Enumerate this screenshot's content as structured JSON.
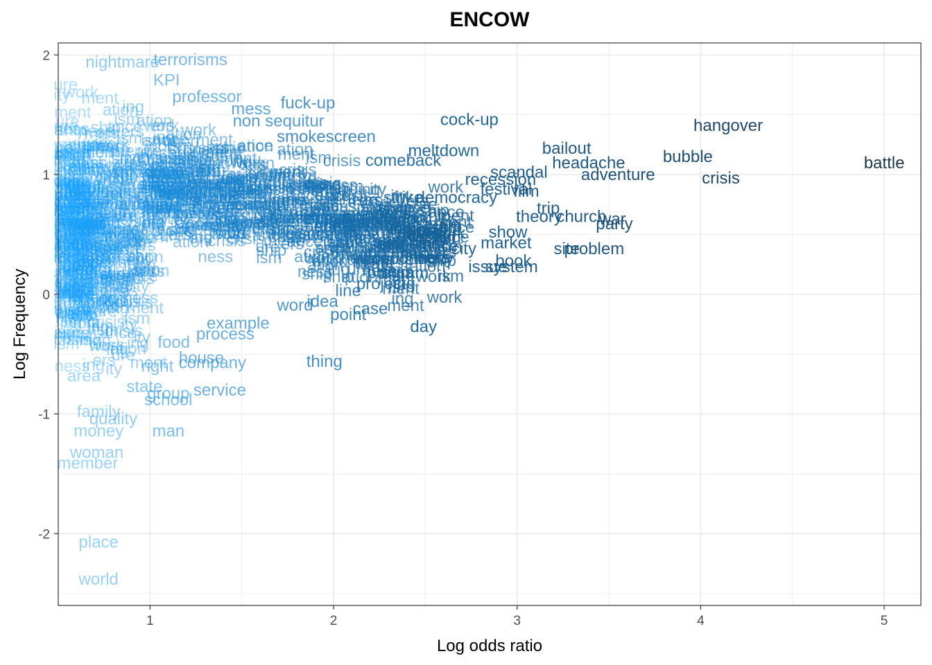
{
  "chart_data": {
    "type": "scatter",
    "title": "ENCOW",
    "xlabel": "Log odds ratio",
    "ylabel": "Log Frequency",
    "xlim": [
      0.5,
      5.2
    ],
    "ylim": [
      -2.6,
      2.1
    ],
    "x_ticks": [
      "1",
      "2",
      "3",
      "4",
      "5"
    ],
    "y_ticks": [
      "2",
      "1",
      "0",
      "-1",
      "-2"
    ],
    "grid": true,
    "legend": "none",
    "color_low": "#1aa3ff",
    "color_high": "#132b43",
    "points": [
      {
        "label": "battle",
        "x": 5.0,
        "y": 1.1
      },
      {
        "label": "hangover",
        "x": 4.15,
        "y": 1.41
      },
      {
        "label": "bubble",
        "x": 3.93,
        "y": 1.15
      },
      {
        "label": "crisis",
        "x": 4.11,
        "y": 0.97
      },
      {
        "label": "adventure",
        "x": 3.55,
        "y": 1.0
      },
      {
        "label": "bailout",
        "x": 3.27,
        "y": 1.22
      },
      {
        "label": "headache",
        "x": 3.39,
        "y": 1.1
      },
      {
        "label": "party",
        "x": 3.53,
        "y": 0.59
      },
      {
        "label": "war",
        "x": 3.52,
        "y": 0.63
      },
      {
        "label": "church",
        "x": 3.35,
        "y": 0.65
      },
      {
        "label": "problem",
        "x": 3.42,
        "y": 0.38
      },
      {
        "label": "site",
        "x": 3.27,
        "y": 0.38
      },
      {
        "label": "system",
        "x": 2.97,
        "y": 0.23
      },
      {
        "label": "market",
        "x": 2.94,
        "y": 0.43
      },
      {
        "label": "cock-up",
        "x": 2.74,
        "y": 1.46
      },
      {
        "label": "democracy",
        "x": 2.67,
        "y": 0.81
      },
      {
        "label": "recession",
        "x": 2.91,
        "y": 0.96
      },
      {
        "label": "festival",
        "x": 2.94,
        "y": 0.88
      },
      {
        "label": "theory",
        "x": 3.12,
        "y": 0.65
      },
      {
        "label": "scandal",
        "x": 3.01,
        "y": 1.02
      },
      {
        "label": "book",
        "x": 2.98,
        "y": 0.28
      },
      {
        "label": "issue",
        "x": 2.84,
        "y": 0.23
      },
      {
        "label": "city",
        "x": 2.71,
        "y": 0.38
      },
      {
        "label": "network",
        "x": 2.56,
        "y": 0.51
      },
      {
        "label": "day",
        "x": 2.49,
        "y": -0.27
      },
      {
        "label": "case",
        "x": 2.2,
        "y": -0.12
      },
      {
        "label": "point",
        "x": 2.08,
        "y": -0.17
      },
      {
        "label": "thing",
        "x": 1.95,
        "y": -0.56
      },
      {
        "label": "line",
        "x": 2.08,
        "y": 0.03
      },
      {
        "label": "project",
        "x": 2.26,
        "y": 0.09
      },
      {
        "label": "idea",
        "x": 1.94,
        "y": -0.06
      },
      {
        "label": "program",
        "x": 2.35,
        "y": 0.18
      },
      {
        "label": "opportunity",
        "x": 2.43,
        "y": 0.3
      },
      {
        "label": "fuck-up",
        "x": 1.86,
        "y": 1.6
      },
      {
        "label": "smokescreen",
        "x": 1.96,
        "y": 1.32
      },
      {
        "label": "comeback",
        "x": 2.38,
        "y": 1.12
      },
      {
        "label": "meltdown",
        "x": 2.6,
        "y": 1.2
      },
      {
        "label": "strike",
        "x": 2.38,
        "y": 0.81
      },
      {
        "label": "word",
        "x": 1.79,
        "y": -0.09
      },
      {
        "label": "example",
        "x": 1.48,
        "y": -0.24
      },
      {
        "label": "process",
        "x": 1.41,
        "y": -0.33
      },
      {
        "label": "company",
        "x": 1.34,
        "y": -0.57
      },
      {
        "label": "service",
        "x": 1.38,
        "y": -0.8
      },
      {
        "label": "house",
        "x": 1.28,
        "y": -0.53
      },
      {
        "label": "school",
        "x": 1.1,
        "y": -0.88
      },
      {
        "label": "group",
        "x": 1.1,
        "y": -0.83
      },
      {
        "label": "state",
        "x": 0.97,
        "y": -0.77
      },
      {
        "label": "man",
        "x": 1.1,
        "y": -1.14
      },
      {
        "label": "woman",
        "x": 0.71,
        "y": -1.32
      },
      {
        "label": "member",
        "x": 0.66,
        "y": -1.41
      },
      {
        "label": "place",
        "x": 0.72,
        "y": -2.07
      },
      {
        "label": "world",
        "x": 0.72,
        "y": -2.38
      },
      {
        "label": "money",
        "x": 0.72,
        "y": -1.14
      },
      {
        "label": "quality",
        "x": 0.8,
        "y": -1.04
      },
      {
        "label": "family",
        "x": 0.72,
        "y": -0.98
      },
      {
        "label": "area",
        "x": 0.64,
        "y": -0.68
      },
      {
        "label": "right",
        "x": 1.04,
        "y": -0.6
      },
      {
        "label": "food",
        "x": 1.13,
        "y": -0.4
      },
      {
        "label": "terrorisms",
        "x": 1.22,
        "y": 1.96
      },
      {
        "label": "nightmare",
        "x": 0.85,
        "y": 1.94
      },
      {
        "label": "professor",
        "x": 1.31,
        "y": 1.65
      },
      {
        "label": "KPI",
        "x": 1.09,
        "y": 1.79
      },
      {
        "label": "mess",
        "x": 1.55,
        "y": 1.55
      },
      {
        "label": "non sequitur",
        "x": 1.7,
        "y": 1.45
      },
      {
        "label": "election",
        "x": 2.15,
        "y": 0.6
      },
      {
        "label": "conflict",
        "x": 2.2,
        "y": 0.65
      },
      {
        "label": "show",
        "x": 2.95,
        "y": 0.52
      },
      {
        "label": "trip",
        "x": 3.17,
        "y": 0.72
      },
      {
        "label": "film",
        "x": 3.05,
        "y": 0.86
      }
    ]
  }
}
